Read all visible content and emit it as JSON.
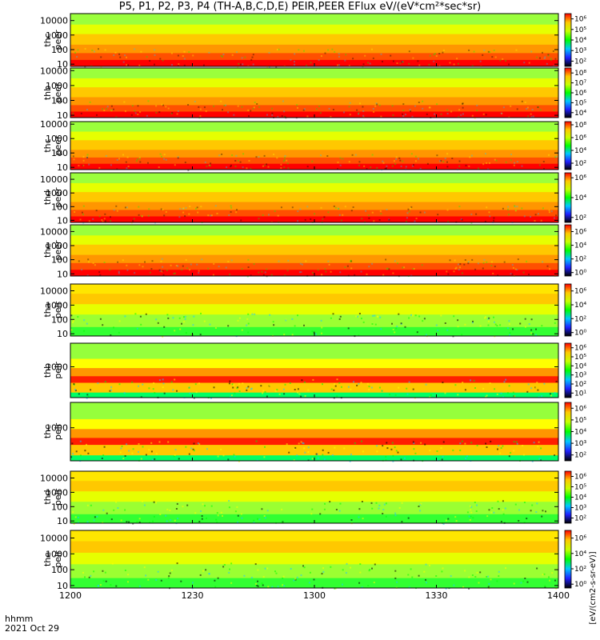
{
  "title": "P5, P1, P2, P3, P4 (TH-A,B,C,D,E) PEIR,PEER EFlux eV/(eV*cm²*sec*sr)",
  "footer": {
    "time_label": "hhmm",
    "date_label": "2021 Oct 29"
  },
  "chart_data": {
    "type": "heatmap",
    "title": "P5, P1, P2, P3, P4 (TH-A,B,C,D,E) PEIR,PEER EFlux eV/(eV*cm²*sec*sr)",
    "x_axis": {
      "range": [
        "12:00",
        "14:00"
      ],
      "ticks": [
        "1200",
        "1230",
        "1300",
        "1330",
        "1400"
      ]
    },
    "y_scale": "log",
    "colorbar": {
      "scale": "log",
      "label": "[eV/(cm2-s-sr-eV)]",
      "colors": [
        "#000000",
        "#2020ff",
        "#00c8ff",
        "#00ff00",
        "#c8ff00",
        "#ffc800",
        "#ff0000"
      ]
    },
    "panels": [
      {
        "name": "thc peer",
        "line1": "thc",
        "line2": "peer",
        "y_ticks": [
          "10",
          "100",
          "1000",
          "10000"
        ],
        "ylim": [
          7,
          30000
        ],
        "cbar_ticks": [
          "10²",
          "10³",
          "10⁴",
          "10⁵",
          "10⁶"
        ],
        "cbar_range": [
          1.5,
          6.5
        ]
      },
      {
        "name": "thb peer",
        "line1": "thb",
        "line2": "peer",
        "y_ticks": [
          "10",
          "100",
          "1000",
          "10000"
        ],
        "ylim": [
          7,
          15000
        ],
        "cbar_ticks": [
          "10⁴",
          "10⁵",
          "10⁶",
          "10⁷",
          "10⁸"
        ],
        "cbar_range": [
          3.5,
          8.5
        ]
      },
      {
        "name": "thc peer",
        "line1": "thc",
        "line2": "peer",
        "y_ticks": [
          "10",
          "100",
          "1000",
          "10000"
        ],
        "ylim": [
          7,
          15000
        ],
        "cbar_ticks": [
          "10²",
          "10⁴",
          "10⁶",
          "10⁸"
        ],
        "cbar_range": [
          1,
          8.5
        ]
      },
      {
        "name": "thd peer",
        "line1": "thd",
        "line2": "peer",
        "y_ticks": [
          "10",
          "100",
          "1000",
          "10000"
        ],
        "ylim": [
          7,
          30000
        ],
        "cbar_ticks": [
          "10²",
          "10⁴",
          "10⁶"
        ],
        "cbar_range": [
          1.5,
          6.5
        ]
      },
      {
        "name": "the peer",
        "line1": "the",
        "line2": "peer",
        "y_ticks": [
          "10",
          "100",
          "1000",
          "10000"
        ],
        "ylim": [
          7,
          30000
        ],
        "cbar_ticks": [
          "10⁰",
          "10²",
          "10⁴",
          "10⁶"
        ],
        "cbar_range": [
          -0.5,
          7
        ]
      },
      {
        "name": "tha peir",
        "line1": "tha",
        "line2": "peir",
        "y_ticks": [
          "10",
          "100",
          "1000",
          "10000"
        ],
        "ylim": [
          7,
          30000
        ],
        "cbar_ticks": [
          "10⁰",
          "10²",
          "10⁴",
          "10⁶"
        ],
        "cbar_range": [
          -0.5,
          7
        ]
      },
      {
        "name": "thb peir",
        "line1": "thb",
        "line2": "peir",
        "y_ticks": [
          "1000"
        ],
        "ylim": [
          20,
          20000
        ],
        "cbar_ticks": [
          "10¹",
          "10²",
          "10³",
          "10⁴",
          "10⁵",
          "10⁶"
        ],
        "cbar_range": [
          0.5,
          6.5
        ]
      },
      {
        "name": "thc peir",
        "line1": "thc",
        "line2": "peir",
        "y_ticks": [
          "1000"
        ],
        "ylim": [
          20,
          20000
        ],
        "cbar_ticks": [
          "10²",
          "10³",
          "10⁴",
          "10⁵",
          "10⁶"
        ],
        "cbar_range": [
          1.5,
          6.5
        ]
      },
      {
        "name": "thd peir",
        "line1": "thd",
        "line2": "peir",
        "y_ticks": [
          "10",
          "100",
          "1000",
          "10000"
        ],
        "ylim": [
          7,
          30000
        ],
        "cbar_ticks": [
          "10²",
          "10³",
          "10⁴",
          "10⁵",
          "10⁶"
        ],
        "cbar_range": [
          1.5,
          6.5
        ]
      },
      {
        "name": "the peir",
        "line1": "the",
        "line2": "peir",
        "y_ticks": [
          "10",
          "100",
          "1000",
          "10000"
        ],
        "ylim": [
          7,
          30000
        ],
        "cbar_ticks": [
          "10⁰",
          "10²",
          "10⁴",
          "10⁶"
        ],
        "cbar_range": [
          -0.5,
          7
        ]
      }
    ]
  }
}
